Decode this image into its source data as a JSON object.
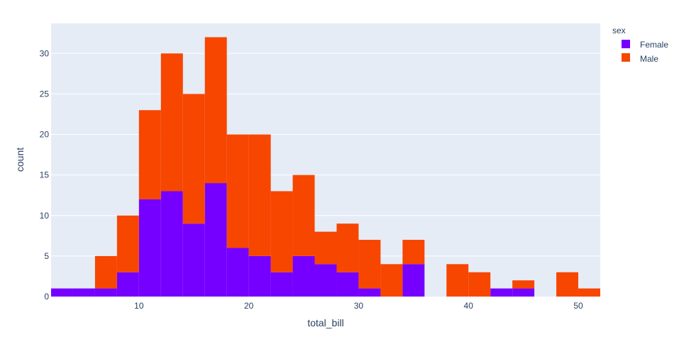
{
  "chart_data": {
    "type": "bar",
    "subtype": "stacked-histogram",
    "title": "",
    "xlabel": "total_bill",
    "ylabel": "count",
    "xlim": [
      2,
      52
    ],
    "ylim": [
      0,
      33.7
    ],
    "bin_width": 2,
    "x_ticks": [
      10,
      20,
      30,
      40,
      50
    ],
    "y_ticks": [
      0,
      5,
      10,
      15,
      20,
      25,
      30
    ],
    "grid": true,
    "legend_title": "sex",
    "legend_position": "right",
    "bin_starts": [
      2,
      4,
      6,
      8,
      10,
      12,
      14,
      16,
      18,
      20,
      22,
      24,
      26,
      28,
      30,
      32,
      34,
      36,
      38,
      40,
      42,
      44,
      46,
      48,
      50
    ],
    "series": [
      {
        "name": "Female",
        "color": "#7600ff",
        "values": [
          1,
          1,
          1,
          3,
          12,
          13,
          9,
          14,
          6,
          5,
          3,
          5,
          4,
          3,
          1,
          0,
          4,
          0,
          0,
          0,
          1,
          1,
          0,
          0,
          0
        ]
      },
      {
        "name": "Male",
        "color": "#f74600",
        "values": [
          0,
          0,
          4,
          7,
          11,
          17,
          16,
          18,
          14,
          15,
          10,
          10,
          4,
          6,
          6,
          4,
          3,
          0,
          4,
          3,
          0,
          1,
          0,
          3,
          1
        ]
      }
    ]
  },
  "colors": {
    "plot_bg": "#e5ecf6",
    "grid": "#ffffff",
    "text": "#2a3f5f"
  }
}
